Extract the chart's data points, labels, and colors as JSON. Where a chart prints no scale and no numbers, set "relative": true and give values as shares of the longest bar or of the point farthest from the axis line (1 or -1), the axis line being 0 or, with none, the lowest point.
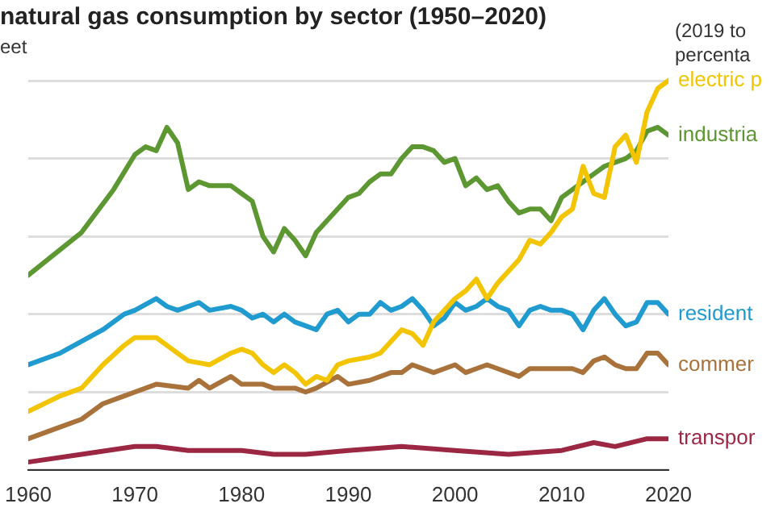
{
  "chart_data": {
    "type": "line",
    "title": "natural gas consumption by sector (1950–2020)",
    "subtitle": "eet",
    "annotations": [
      "(2019 to percenta"
    ],
    "relative": true,
    "grid": "y",
    "legend": false,
    "marker": "none",
    "line_style": "solid",
    "xlim": [
      1960,
      2020
    ],
    "xticks": [
      1960,
      1970,
      1980,
      1990,
      2000,
      2010,
      2020
    ],
    "series": [
      {
        "name": "electric p",
        "color": "#f2c500",
        "x": [
          1960,
          1963,
          1965,
          1967,
          1969,
          1970,
          1972,
          1973,
          1975,
          1977,
          1979,
          1980,
          1981,
          1982,
          1983,
          1984,
          1985,
          1986,
          1987,
          1988,
          1989,
          1990,
          1992,
          1993,
          1994,
          1995,
          1996,
          1997,
          1998,
          1999,
          2000,
          2001,
          2002,
          2003,
          2004,
          2005,
          2006,
          2007,
          2008,
          2009,
          2010,
          2011,
          2012,
          2013,
          2014,
          2015,
          2016,
          2017,
          2018,
          2019,
          2020
        ],
        "values": [
          0.15,
          0.19,
          0.21,
          0.27,
          0.32,
          0.34,
          0.34,
          0.32,
          0.28,
          0.27,
          0.3,
          0.31,
          0.3,
          0.27,
          0.25,
          0.27,
          0.25,
          0.22,
          0.24,
          0.23,
          0.27,
          0.28,
          0.29,
          0.3,
          0.33,
          0.36,
          0.35,
          0.32,
          0.38,
          0.41,
          0.44,
          0.46,
          0.49,
          0.44,
          0.48,
          0.51,
          0.54,
          0.59,
          0.58,
          0.61,
          0.65,
          0.67,
          0.78,
          0.71,
          0.7,
          0.83,
          0.86,
          0.79,
          0.92,
          0.98,
          1
        ]
      },
      {
        "name": "industria",
        "color": "#5d9732",
        "x": [
          1960,
          1965,
          1968,
          1970,
          1971,
          1972,
          1973,
          1974,
          1975,
          1976,
          1977,
          1978,
          1979,
          1980,
          1981,
          1982,
          1983,
          1984,
          1985,
          1986,
          1987,
          1988,
          1989,
          1990,
          1991,
          1992,
          1993,
          1994,
          1995,
          1996,
          1997,
          1998,
          1999,
          2000,
          2001,
          2002,
          2003,
          2004,
          2005,
          2006,
          2007,
          2008,
          2009,
          2010,
          2011,
          2012,
          2013,
          2014,
          2015,
          2016,
          2017,
          2018,
          2019,
          2020
        ],
        "values": [
          0.5,
          0.61,
          0.72,
          0.81,
          0.83,
          0.82,
          0.88,
          0.84,
          0.72,
          0.74,
          0.73,
          0.73,
          0.73,
          0.71,
          0.69,
          0.6,
          0.56,
          0.62,
          0.59,
          0.55,
          0.61,
          0.64,
          0.67,
          0.7,
          0.71,
          0.74,
          0.76,
          0.76,
          0.8,
          0.83,
          0.83,
          0.82,
          0.79,
          0.8,
          0.73,
          0.75,
          0.72,
          0.73,
          0.69,
          0.66,
          0.67,
          0.67,
          0.64,
          0.7,
          0.72,
          0.74,
          0.76,
          0.78,
          0.79,
          0.8,
          0.82,
          0.87,
          0.88,
          0.86
        ]
      },
      {
        "name": "resident",
        "color": "#1f9bcf",
        "x": [
          1960,
          1963,
          1965,
          1967,
          1969,
          1970,
          1972,
          1973,
          1974,
          1976,
          1977,
          1979,
          1980,
          1981,
          1982,
          1983,
          1984,
          1985,
          1986,
          1987,
          1988,
          1989,
          1990,
          1991,
          1992,
          1993,
          1994,
          1995,
          1996,
          1997,
          1998,
          1999,
          2000,
          2001,
          2002,
          2003,
          2004,
          2005,
          2006,
          2007,
          2008,
          2009,
          2010,
          2011,
          2012,
          2013,
          2014,
          2015,
          2016,
          2017,
          2018,
          2019,
          2020
        ],
        "values": [
          0.27,
          0.3,
          0.33,
          0.36,
          0.4,
          0.41,
          0.44,
          0.42,
          0.41,
          0.43,
          0.41,
          0.42,
          0.41,
          0.39,
          0.4,
          0.38,
          0.4,
          0.38,
          0.37,
          0.36,
          0.4,
          0.41,
          0.38,
          0.4,
          0.4,
          0.43,
          0.41,
          0.42,
          0.44,
          0.41,
          0.37,
          0.39,
          0.43,
          0.41,
          0.42,
          0.44,
          0.42,
          0.41,
          0.37,
          0.41,
          0.42,
          0.41,
          0.41,
          0.4,
          0.36,
          0.41,
          0.44,
          0.4,
          0.37,
          0.38,
          0.43,
          0.43,
          0.4
        ]
      },
      {
        "name": "commer",
        "color": "#a9723a",
        "x": [
          1960,
          1963,
          1965,
          1967,
          1969,
          1970,
          1972,
          1975,
          1976,
          1977,
          1979,
          1980,
          1982,
          1983,
          1985,
          1986,
          1987,
          1989,
          1990,
          1992,
          1994,
          1995,
          1996,
          1998,
          1999,
          2000,
          2001,
          2002,
          2003,
          2004,
          2006,
          2007,
          2008,
          2010,
          2011,
          2012,
          2013,
          2014,
          2015,
          2016,
          2017,
          2018,
          2019,
          2020
        ],
        "values": [
          0.08,
          0.11,
          0.13,
          0.17,
          0.19,
          0.2,
          0.22,
          0.21,
          0.23,
          0.21,
          0.24,
          0.22,
          0.22,
          0.21,
          0.21,
          0.2,
          0.21,
          0.24,
          0.22,
          0.23,
          0.25,
          0.25,
          0.27,
          0.25,
          0.26,
          0.27,
          0.25,
          0.26,
          0.27,
          0.26,
          0.24,
          0.26,
          0.26,
          0.26,
          0.26,
          0.25,
          0.28,
          0.29,
          0.27,
          0.26,
          0.26,
          0.3,
          0.3,
          0.27
        ]
      },
      {
        "name": "transpor",
        "color": "#9b2743",
        "x": [
          1960,
          1965,
          1970,
          1972,
          1975,
          1978,
          1980,
          1983,
          1986,
          1990,
          1995,
          2000,
          2005,
          2010,
          2013,
          2015,
          2018,
          2020
        ],
        "values": [
          0.02,
          0.04,
          0.06,
          0.06,
          0.05,
          0.05,
          0.05,
          0.04,
          0.04,
          0.05,
          0.06,
          0.05,
          0.04,
          0.05,
          0.07,
          0.06,
          0.08,
          0.08
        ]
      }
    ]
  }
}
